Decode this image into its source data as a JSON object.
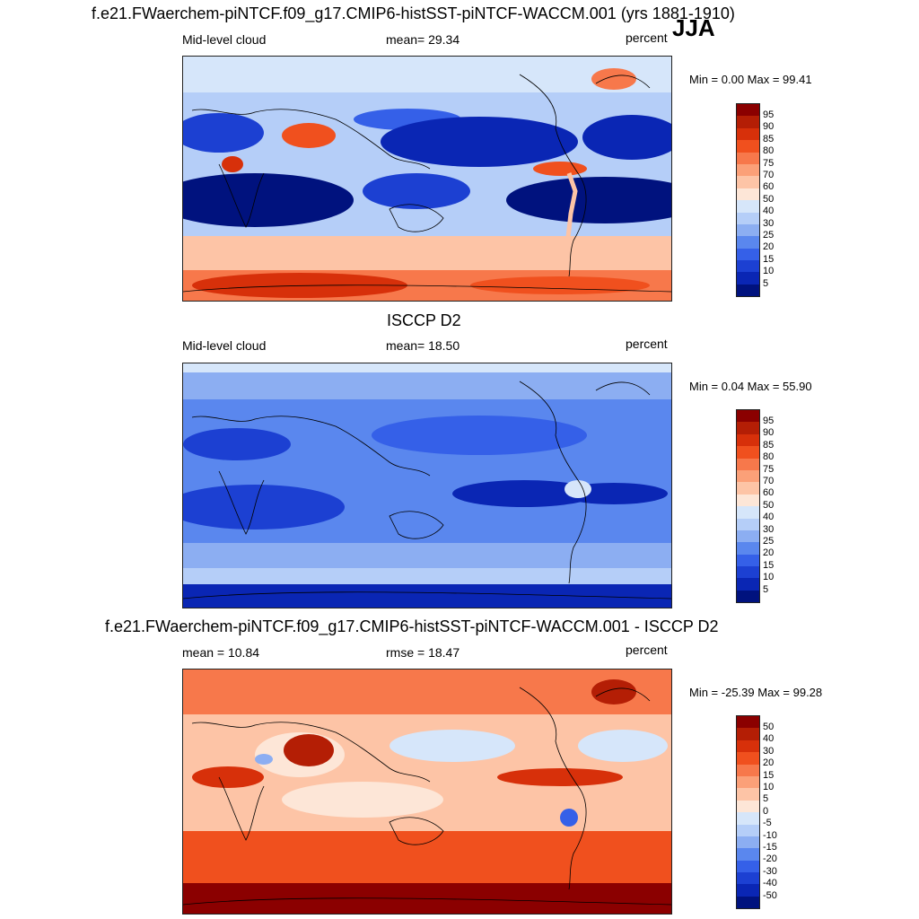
{
  "panel1": {
    "title": "f.e21.FWaerchem-piNTCF.f09_g17.CMIP6-histSST-piNTCF-WACCM.001 (yrs 1881-1910)",
    "season": "JJA",
    "left_label": "Mid-level cloud",
    "stat_label": "mean=  29.34",
    "unit": "percent",
    "minmax": "Min =   0.00 Max =  99.41"
  },
  "panel2": {
    "title": "ISCCP D2",
    "left_label": "Mid-level cloud",
    "stat_label": "mean=  18.50",
    "unit": "percent",
    "minmax": "Min =   0.04 Max =  55.90"
  },
  "panel3": {
    "title": "f.e21.FWaerchem-piNTCF.f09_g17.CMIP6-histSST-piNTCF-WACCM.001 - ISCCP D2",
    "left_label": "mean =  10.84",
    "stat_label": "rmse =  18.47",
    "unit": "percent",
    "minmax": "Min = -25.39 Max =  99.28"
  },
  "colorbar_abs": {
    "labels": [
      "95",
      "90",
      "85",
      "80",
      "75",
      "70",
      "60",
      "50",
      "40",
      "30",
      "25",
      "20",
      "15",
      "10",
      "5"
    ],
    "colors": [
      "#8b0000",
      "#b41e05",
      "#d7300a",
      "#f0501e",
      "#f7784b",
      "#fba078",
      "#fdc4a6",
      "#fde6d7",
      "#d6e6fa",
      "#b5cef8",
      "#8caef2",
      "#5a87ee",
      "#3560e8",
      "#1c40d2",
      "#0a26b4",
      "#00127e"
    ]
  },
  "colorbar_diff": {
    "labels": [
      "50",
      "40",
      "30",
      "20",
      "15",
      "10",
      "5",
      "0",
      "-5",
      "-10",
      "-15",
      "-20",
      "-30",
      "-40",
      "-50"
    ],
    "colors": [
      "#8b0000",
      "#b41e05",
      "#d7300a",
      "#f0501e",
      "#f7784b",
      "#fba078",
      "#fdc4a6",
      "#fde6d7",
      "#d6e6fa",
      "#b5cef8",
      "#8caef2",
      "#5a87ee",
      "#3560e8",
      "#1c40d2",
      "#0a26b4",
      "#00127e"
    ]
  }
}
